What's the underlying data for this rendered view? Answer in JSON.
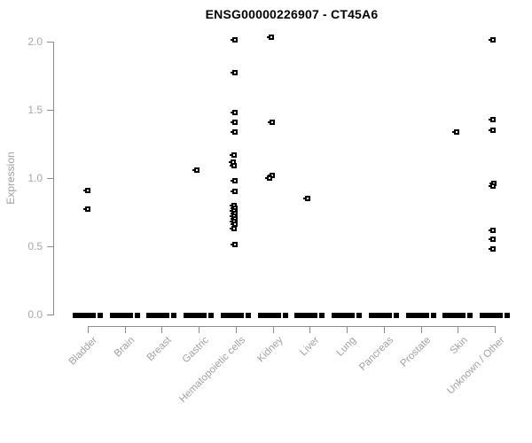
{
  "title": "ENSG00000226907 - CT45A6",
  "colors": {
    "point": "#000000",
    "marker_center": "#ffffff",
    "axis_line": "#8c8c8c",
    "tick_text": "#a8a8a8",
    "title_text": "#000000",
    "background": "#ffffff"
  },
  "y_axis": {
    "label": "Expression",
    "tick_labels": [
      "0.0",
      "0.5",
      "1.0",
      "1.5",
      "2.0"
    ],
    "tick_values": [
      0,
      0.5,
      1,
      1.5,
      2
    ]
  },
  "x_axis": {
    "categories": [
      "Bladder",
      "Brain",
      "Breast",
      "Gastric",
      "Hematopoietic cells",
      "Kidney",
      "Liver",
      "Lung",
      "Pancreas",
      "Prostate",
      "Skin",
      "Unknown / Other"
    ]
  },
  "chart_data": {
    "type": "scatter",
    "title": "ENSG00000226907 - CT45A6",
    "xlabel": "",
    "ylabel": "Expression",
    "ylim": [
      0,
      2.1
    ],
    "grid": false,
    "legend": "none",
    "marker": "open-square",
    "categories": [
      "Bladder",
      "Brain",
      "Breast",
      "Gastric",
      "Hematopoietic cells",
      "Kidney",
      "Liver",
      "Lung",
      "Pancreas",
      "Prostate",
      "Skin",
      "Unknown / Other"
    ],
    "zero_cluster_value": 0.0,
    "points_by_category": [
      {
        "category": "Bladder",
        "zero_bar": true,
        "points": [
          {
            "v": 0.91,
            "dx": 0
          },
          {
            "v": 0.77,
            "dx": 0
          }
        ]
      },
      {
        "category": "Brain",
        "zero_bar": true,
        "points": []
      },
      {
        "category": "Breast",
        "zero_bar": true,
        "points": []
      },
      {
        "category": "Gastric",
        "zero_bar": true,
        "points": [
          {
            "v": 1.06,
            "dx": -2
          }
        ]
      },
      {
        "category": "Hematopoietic cells",
        "zero_bar": true,
        "points": [
          {
            "v": 2.01,
            "dx": -1
          },
          {
            "v": 1.77,
            "dx": -1
          },
          {
            "v": 1.48,
            "dx": -1
          },
          {
            "v": 1.41,
            "dx": -1
          },
          {
            "v": 1.34,
            "dx": -1
          },
          {
            "v": 1.17,
            "dx": -2
          },
          {
            "v": 1.12,
            "dx": -3
          },
          {
            "v": 1.09,
            "dx": -2
          },
          {
            "v": 0.98,
            "dx": -1
          },
          {
            "v": 0.9,
            "dx": -1
          },
          {
            "v": 0.8,
            "dx": -2
          },
          {
            "v": 0.78,
            "dx": -1
          },
          {
            "v": 0.76,
            "dx": -2
          },
          {
            "v": 0.74,
            "dx": -1
          },
          {
            "v": 0.72,
            "dx": -2
          },
          {
            "v": 0.7,
            "dx": -1
          },
          {
            "v": 0.68,
            "dx": -2
          },
          {
            "v": 0.66,
            "dx": -1
          },
          {
            "v": 0.63,
            "dx": -2
          },
          {
            "v": 0.51,
            "dx": -1
          }
        ]
      },
      {
        "category": "Kidney",
        "zero_bar": true,
        "points": [
          {
            "v": 2.03,
            "dx": -2
          },
          {
            "v": 1.41,
            "dx": -1
          },
          {
            "v": 1.02,
            "dx": -1
          },
          {
            "v": 1.0,
            "dx": -4
          }
        ]
      },
      {
        "category": "Liver",
        "zero_bar": true,
        "points": [
          {
            "v": 0.85,
            "dx": -2
          }
        ]
      },
      {
        "category": "Lung",
        "zero_bar": true,
        "points": []
      },
      {
        "category": "Pancreas",
        "zero_bar": true,
        "points": []
      },
      {
        "category": "Prostate",
        "zero_bar": true,
        "points": []
      },
      {
        "category": "Skin",
        "zero_bar": true,
        "points": [
          {
            "v": 1.34,
            "dx": -1
          }
        ]
      },
      {
        "category": "Unknown / Other",
        "zero_bar": true,
        "points": [
          {
            "v": 2.01,
            "dx": -2
          },
          {
            "v": 1.43,
            "dx": -2
          },
          {
            "v": 1.35,
            "dx": -2
          },
          {
            "v": 0.96,
            "dx": -1
          },
          {
            "v": 0.94,
            "dx": -2
          },
          {
            "v": 0.62,
            "dx": -2
          },
          {
            "v": 0.55,
            "dx": -2
          },
          {
            "v": 0.48,
            "dx": -2
          }
        ]
      }
    ]
  }
}
